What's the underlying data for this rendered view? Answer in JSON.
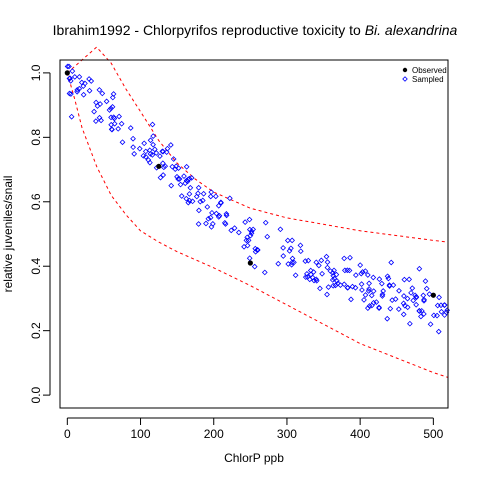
{
  "chart_data": {
    "type": "scatter",
    "title": "Ibrahim1992 - Chlorpyrifos reproductive toxicity to",
    "title_italic": "Bi. alexandrina",
    "xlabel": "ChlorP ppb",
    "ylabel": "relative juveniles/snail",
    "xlim": [
      -10,
      520
    ],
    "ylim": [
      -0.04,
      1.04
    ],
    "x_ticks": [
      0,
      100,
      200,
      300,
      400,
      500
    ],
    "y_ticks": [
      0.0,
      0.2,
      0.4,
      0.6,
      0.8,
      1.0
    ],
    "x_tick_labels": [
      "0",
      "100",
      "200",
      "300",
      "400",
      "500"
    ],
    "y_tick_labels": [
      "0.0",
      "0.2",
      "0.4",
      "0.6",
      "0.8",
      "1.0"
    ],
    "legend": {
      "position": "top-right",
      "entries": [
        {
          "label": "Observed",
          "marker": "filled-circle",
          "color": "#000000"
        },
        {
          "label": "Sampled",
          "marker": "open-diamond",
          "color": "#0000ff"
        }
      ]
    },
    "grid": false,
    "series": [
      {
        "name": "Observed",
        "color": "#000000",
        "x": [
          0,
          125,
          250,
          500
        ],
        "y": [
          1.0,
          0.71,
          0.41,
          0.31
        ]
      },
      {
        "name": "Sampled",
        "color": "#0000ff",
        "sample_count": 300,
        "x_range": [
          0,
          520
        ],
        "median_trend": {
          "x": [
            0,
            50,
            100,
            150,
            200,
            250,
            300,
            350,
            400,
            450,
            500,
            520
          ],
          "y": [
            1.0,
            0.88,
            0.78,
            0.68,
            0.57,
            0.49,
            0.44,
            0.38,
            0.34,
            0.31,
            0.28,
            0.27
          ]
        },
        "spread": 0.035
      }
    ],
    "bands": [
      {
        "name": "upper",
        "color": "#ff0000",
        "style": "dashed",
        "x": [
          0,
          20,
          40,
          60,
          80,
          100,
          125,
          150,
          175,
          200,
          250,
          300,
          350,
          400,
          450,
          500,
          520
        ],
        "y": [
          1.0,
          1.04,
          1.08,
          1.03,
          0.95,
          0.88,
          0.79,
          0.72,
          0.67,
          0.63,
          0.58,
          0.55,
          0.53,
          0.51,
          0.495,
          0.48,
          0.475
        ]
      },
      {
        "name": "lower",
        "color": "#ff0000",
        "style": "dashed",
        "x": [
          0,
          10,
          20,
          40,
          60,
          80,
          100,
          125,
          150,
          200,
          250,
          300,
          350,
          400,
          450,
          500,
          520
        ],
        "y": [
          1.0,
          0.92,
          0.83,
          0.71,
          0.62,
          0.56,
          0.51,
          0.475,
          0.445,
          0.395,
          0.34,
          0.28,
          0.22,
          0.16,
          0.115,
          0.07,
          0.055
        ]
      }
    ]
  }
}
